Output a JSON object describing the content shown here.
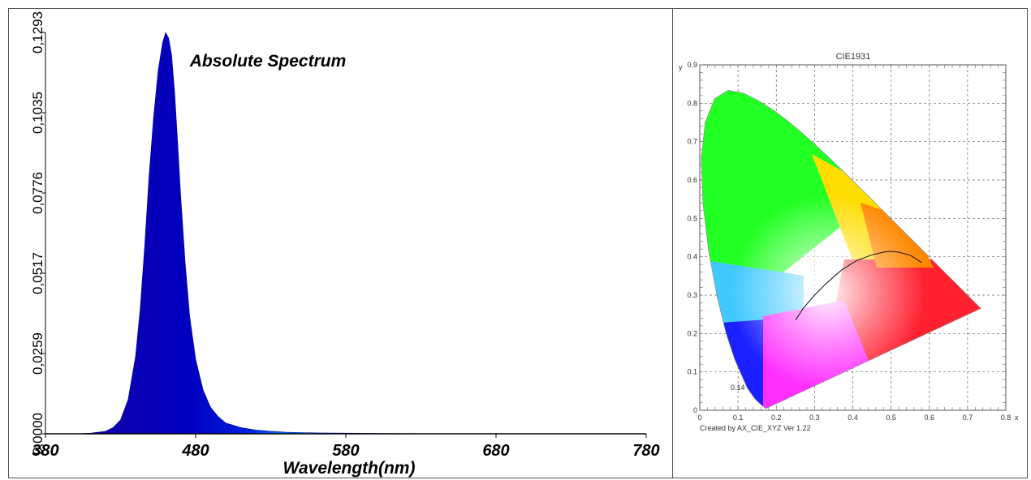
{
  "chart_data": [
    {
      "type": "area",
      "title": "Absolute Spectrum",
      "xlabel": "Wavelength(nm)",
      "ylabel": "",
      "xlim": [
        380,
        780
      ],
      "ylim": [
        0,
        0.1293
      ],
      "x_ticks": [
        "380",
        "480",
        "580",
        "680",
        "780"
      ],
      "y_ticks": [
        "0,0000",
        "0,0259",
        "0,0517",
        "0,0776",
        "0,1035",
        "0,1293"
      ],
      "fill": "wavelength-color gradient",
      "series": [
        {
          "x": [
            380,
            400,
            410,
            420,
            425,
            430,
            435,
            440,
            443,
            446,
            449,
            452,
            455,
            458,
            460,
            462,
            464,
            466,
            468,
            470,
            473,
            476,
            480,
            485,
            490,
            495,
            500,
            510,
            520,
            530,
            540,
            560,
            580,
            600,
            650,
            700,
            780
          ],
          "y": [
            0,
            0,
            0.0002,
            0.0008,
            0.002,
            0.0045,
            0.011,
            0.025,
            0.04,
            0.06,
            0.083,
            0.102,
            0.117,
            0.126,
            0.1293,
            0.1275,
            0.122,
            0.11,
            0.094,
            0.077,
            0.055,
            0.038,
            0.024,
            0.014,
            0.0085,
            0.0055,
            0.0035,
            0.002,
            0.0012,
            0.0008,
            0.0005,
            0.0003,
            0.0002,
            0.0001,
            0,
            0,
            0
          ]
        }
      ]
    },
    {
      "type": "scatter",
      "title": "CIE1931",
      "xlabel": "x",
      "ylabel": "y",
      "xlim": [
        0,
        0.8
      ],
      "ylim": [
        0,
        0.9
      ],
      "grid": true,
      "x_ticks": [
        "0",
        "0.1",
        "0.2",
        "0.3",
        "0.4",
        "0.5",
        "0.6",
        "0.7",
        "0.8"
      ],
      "y_ticks": [
        "0",
        "0.1",
        "0.2",
        "0.3",
        "0.4",
        "0.5",
        "0.6",
        "0.7",
        "0.8",
        "0.9"
      ],
      "annotations": [
        "0.14",
        "Created by AX_CIE_XYZ Ver 1.22"
      ],
      "spectral_locus": {
        "x": [
          0.1741,
          0.1733,
          0.1714,
          0.1689,
          0.1644,
          0.1566,
          0.144,
          0.1241,
          0.0913,
          0.0687,
          0.0454,
          0.0235,
          0.0082,
          0.0039,
          0.0139,
          0.0389,
          0.0743,
          0.1142,
          0.1547,
          0.1929,
          0.2296,
          0.2658,
          0.3016,
          0.3373,
          0.3731,
          0.4087,
          0.4441,
          0.4788,
          0.5125,
          0.5448,
          0.5752,
          0.6029,
          0.627,
          0.6482,
          0.6658,
          0.6915,
          0.7079,
          0.7347
        ],
        "y": [
          0.005,
          0.0048,
          0.0051,
          0.0069,
          0.0109,
          0.0177,
          0.0297,
          0.0578,
          0.1327,
          0.2007,
          0.295,
          0.4127,
          0.5384,
          0.6548,
          0.7502,
          0.812,
          0.8338,
          0.8262,
          0.8059,
          0.7816,
          0.7543,
          0.7243,
          0.6923,
          0.6589,
          0.6245,
          0.5896,
          0.5547,
          0.5202,
          0.4866,
          0.4544,
          0.4242,
          0.3965,
          0.3725,
          0.3514,
          0.334,
          0.3083,
          0.292,
          0.2653
        ]
      },
      "planckian_locus": {
        "x": [
          0.25,
          0.27,
          0.3,
          0.33,
          0.37,
          0.41,
          0.45,
          0.48,
          0.5,
          0.52,
          0.55,
          0.58
        ],
        "y": [
          0.235,
          0.265,
          0.3,
          0.33,
          0.365,
          0.39,
          0.405,
          0.412,
          0.414,
          0.412,
          0.404,
          0.385
        ]
      }
    }
  ]
}
